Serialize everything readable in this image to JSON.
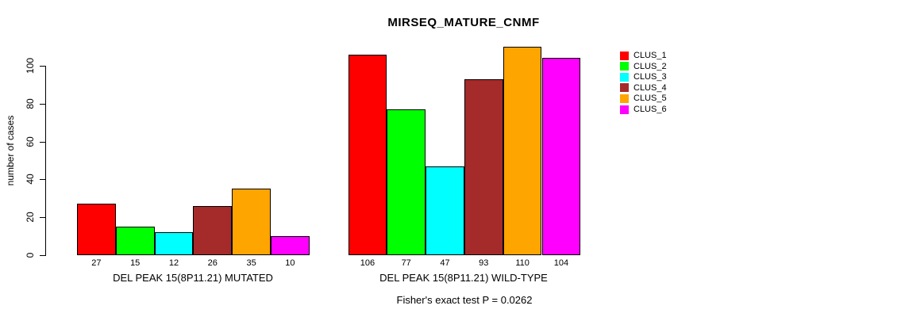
{
  "chart_data": {
    "type": "bar",
    "title": "MIRSEQ_MATURE_CNMF",
    "ylabel": "number of cases",
    "ylim": [
      0,
      110
    ],
    "yticks": [
      0,
      20,
      40,
      60,
      80,
      100
    ],
    "grid": false,
    "legend_position": "right-inside",
    "clusters": [
      "CLUS_1",
      "CLUS_2",
      "CLUS_3",
      "CLUS_4",
      "CLUS_5",
      "CLUS_6"
    ],
    "colors": [
      "#FF0000",
      "#00FF00",
      "#00FFFF",
      "#A52A2A",
      "#FFA500",
      "#FF00FF"
    ],
    "groups": [
      {
        "label": "DEL PEAK 15(8P11.21) MUTATED",
        "values": [
          27,
          15,
          12,
          26,
          35,
          10
        ]
      },
      {
        "label": "DEL PEAK 15(8P11.21) WILD-TYPE",
        "values": [
          106,
          77,
          47,
          93,
          110,
          104
        ]
      }
    ],
    "annotation": "Fisher's exact test P = 0.0262"
  }
}
